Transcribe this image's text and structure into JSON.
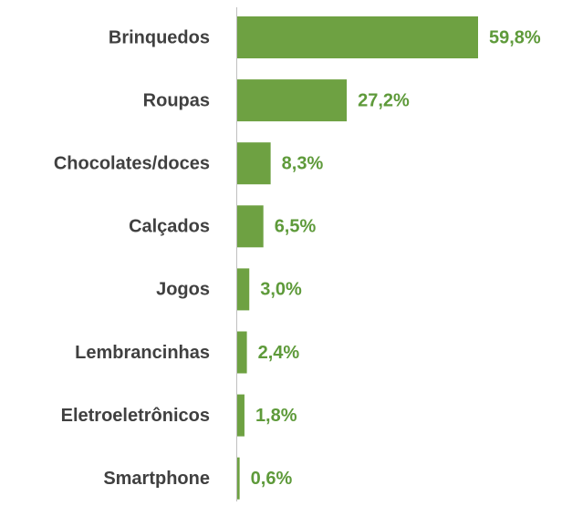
{
  "chart_data": {
    "type": "bar",
    "orientation": "horizontal",
    "categories": [
      "Brinquedos",
      "Roupas",
      "Chocolates/doces",
      "Calçados",
      "Jogos",
      "Lembrancinhas",
      "Eletroeletrônicos",
      "Smartphone"
    ],
    "values": [
      59.8,
      27.2,
      8.3,
      6.5,
      3.0,
      2.4,
      1.8,
      0.6
    ],
    "value_labels": [
      "59,8%",
      "27,2%",
      "8,3%",
      "6,5%",
      "3,0%",
      "2,4%",
      "1,8%",
      "0,6%"
    ],
    "color": "#6ea142"
  }
}
